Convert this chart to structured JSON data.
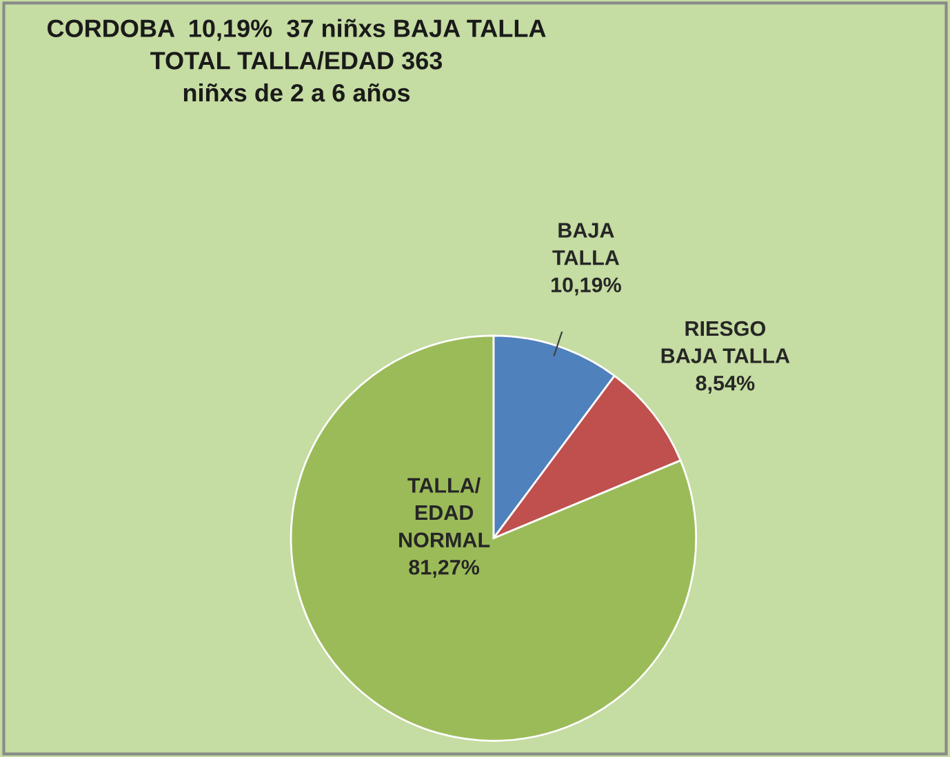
{
  "chart_data": {
    "type": "pie",
    "title": "CORDOBA  10,19%  37 niñxs BAJA TALLA\nTOTAL TALLA/EDAD 363\nniñxs de 2 a 6 años",
    "categories": [
      "BAJA\nTALLA",
      "RIESGO\nBAJA TALLA",
      "TALLA/\nEDAD\nNORMAL"
    ],
    "values": [
      10.19,
      8.54,
      81.27
    ],
    "value_labels": [
      "10,19%",
      "8,54%",
      "81,27%"
    ],
    "colors": [
      "#4f81bd",
      "#c0504d",
      "#9bbb59"
    ],
    "legend": false
  }
}
